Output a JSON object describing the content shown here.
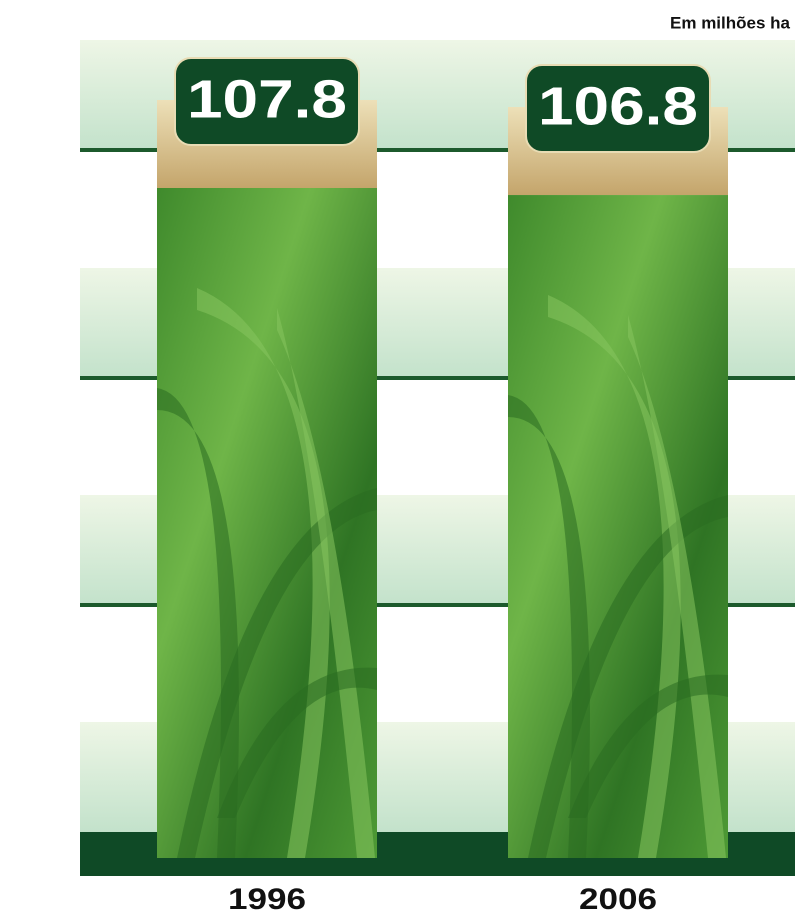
{
  "chart_data": {
    "type": "bar",
    "subtitle": "Em milhões ha",
    "categories": [
      "1996",
      "2006"
    ],
    "values": [
      107.8,
      106.8
    ]
  }
}
